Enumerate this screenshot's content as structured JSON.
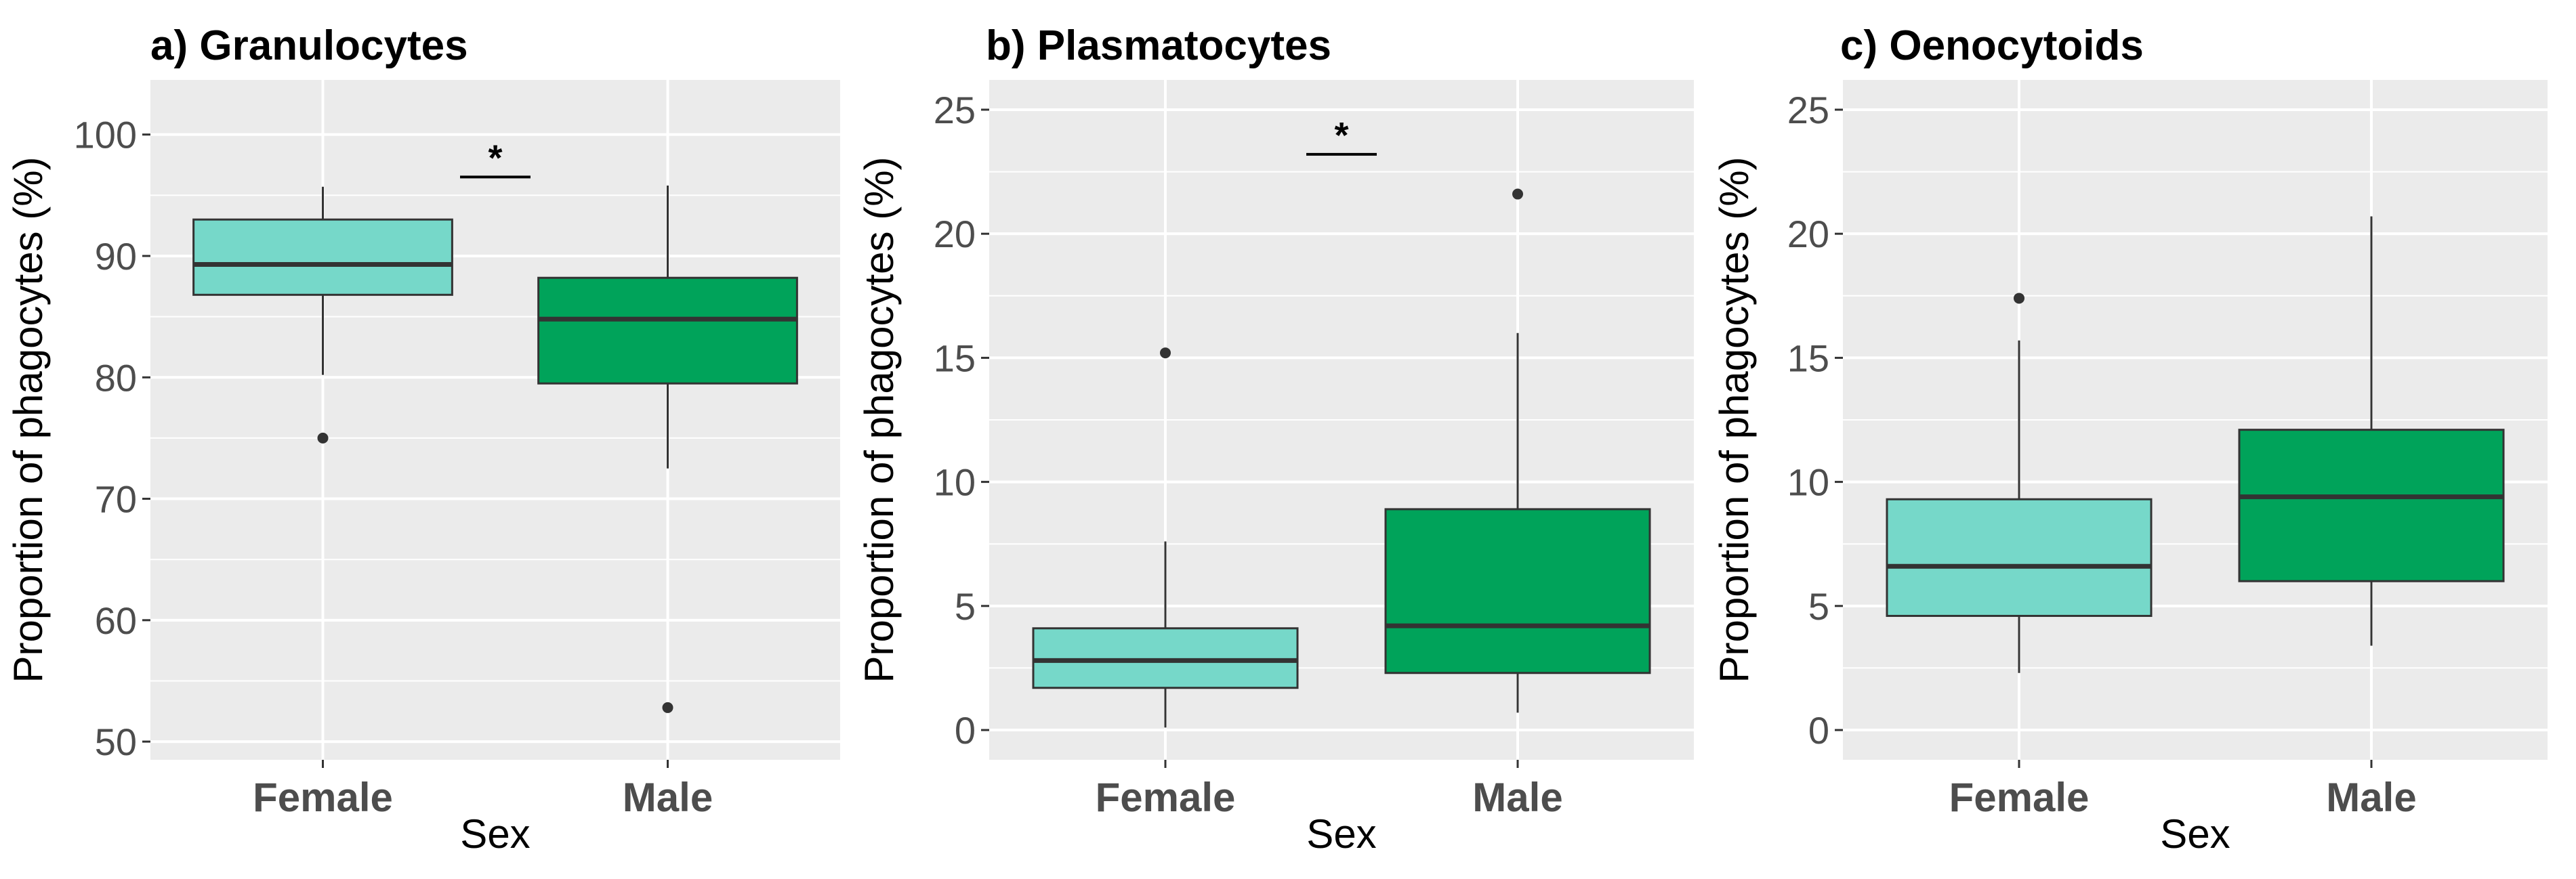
{
  "colors": {
    "female": "#76d8c9",
    "male": "#00a35a",
    "panel_bg": "#ebebeb",
    "grid": "#ffffff",
    "whisker": "#333333"
  },
  "chart_data": [
    {
      "type": "box",
      "title": "a) Granulocytes",
      "xlabel": "Sex",
      "ylabel": "Proportion of phagocytes (%)",
      "categories": [
        "Female",
        "Male"
      ],
      "ylim": [
        48.5,
        104.5
      ],
      "yticks": [
        50,
        60,
        70,
        80,
        90,
        100
      ],
      "ytick_labels": [
        "50",
        "60",
        "70",
        "80",
        "90",
        "100"
      ],
      "boxes": [
        {
          "category": "Female",
          "min": 80.2,
          "q1": 86.8,
          "median": 89.3,
          "q3": 93.0,
          "max": 95.7,
          "outliers": [
            75.0
          ]
        },
        {
          "category": "Male",
          "min": 72.5,
          "q1": 79.5,
          "median": 84.8,
          "q3": 88.2,
          "max": 95.8,
          "outliers": [
            52.8
          ]
        }
      ],
      "significance": {
        "label": "*",
        "y": 96.5
      }
    },
    {
      "type": "box",
      "title": "b) Plasmatocytes",
      "xlabel": "Sex",
      "ylabel": "Proportion of phagocytes (%)",
      "categories": [
        "Female",
        "Male"
      ],
      "ylim": [
        -1.2,
        26.2
      ],
      "yticks": [
        0,
        5,
        10,
        15,
        20,
        25
      ],
      "ytick_labels": [
        "0",
        "5",
        "10",
        "15",
        "20",
        "25"
      ],
      "boxes": [
        {
          "category": "Female",
          "min": 0.1,
          "q1": 1.7,
          "median": 2.8,
          "q3": 4.1,
          "max": 7.6,
          "outliers": [
            15.2
          ]
        },
        {
          "category": "Male",
          "min": 0.7,
          "q1": 2.3,
          "median": 4.2,
          "q3": 8.9,
          "max": 16.0,
          "outliers": [
            21.6
          ]
        }
      ],
      "significance": {
        "label": "*",
        "y": 23.2
      }
    },
    {
      "type": "box",
      "title": "c) Oenocytoids",
      "xlabel": "Sex",
      "ylabel": "Proportion of phagocytes (%)",
      "categories": [
        "Female",
        "Male"
      ],
      "ylim": [
        -1.2,
        26.2
      ],
      "yticks": [
        0,
        5,
        10,
        15,
        20,
        25
      ],
      "ytick_labels": [
        "0",
        "5",
        "10",
        "15",
        "20",
        "25"
      ],
      "boxes": [
        {
          "category": "Female",
          "min": 2.3,
          "q1": 4.6,
          "median": 6.6,
          "q3": 9.3,
          "max": 15.7,
          "outliers": [
            17.4
          ]
        },
        {
          "category": "Male",
          "min": 3.4,
          "q1": 6.0,
          "median": 9.4,
          "q3": 12.1,
          "max": 20.7,
          "outliers": []
        }
      ],
      "significance": null
    }
  ]
}
